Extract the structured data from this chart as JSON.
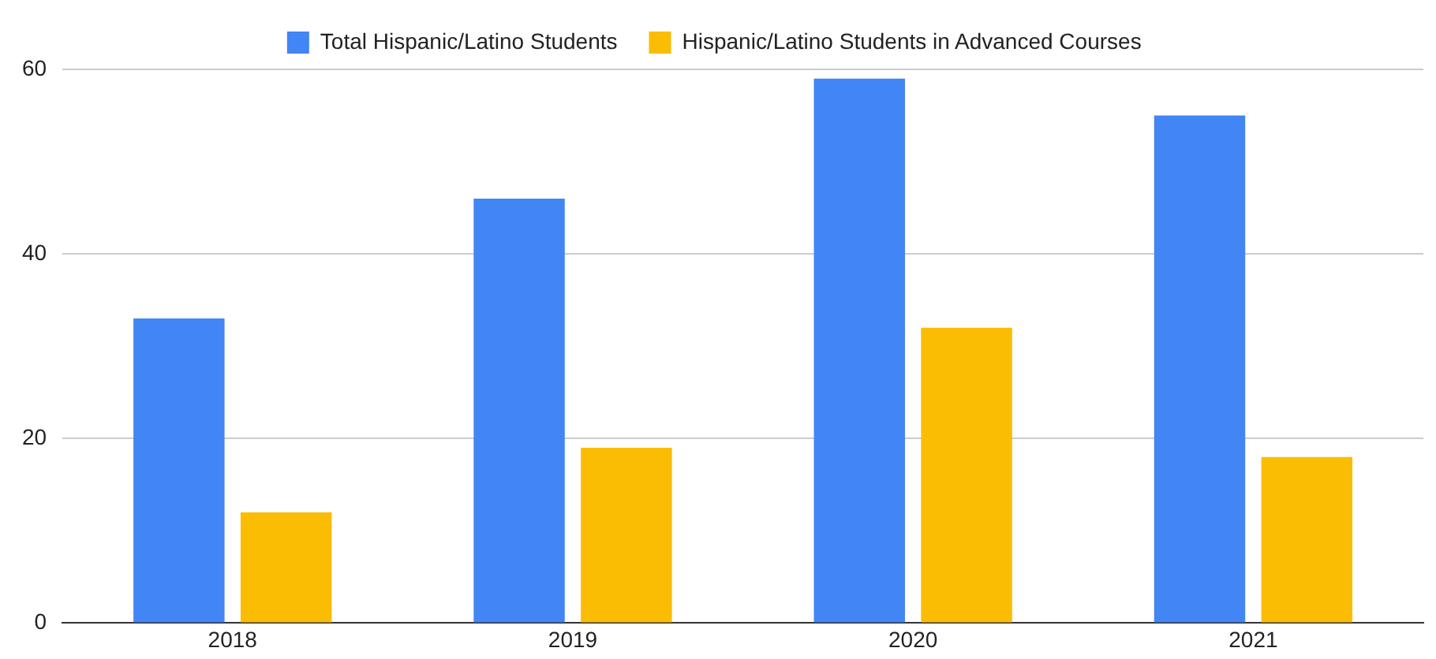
{
  "chart_data": {
    "type": "bar",
    "categories": [
      "2018",
      "2019",
      "2020",
      "2021"
    ],
    "series": [
      {
        "name": "Total Hispanic/Latino Students",
        "color": "#4285f4",
        "values": [
          33,
          46,
          59,
          55
        ]
      },
      {
        "name": "Hispanic/Latino Students in Advanced Courses",
        "color": "#fbbc04",
        "values": [
          12,
          19,
          32,
          18
        ]
      }
    ],
    "ylim": [
      0,
      60
    ],
    "yticks": [
      0,
      20,
      40,
      60
    ],
    "grid": "y",
    "legend": "top"
  }
}
